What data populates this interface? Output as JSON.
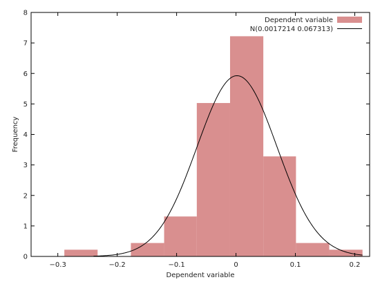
{
  "chart_data": {
    "type": "histogram",
    "title": "",
    "xlabel": "Dependent variable",
    "ylabel": "Frequency",
    "xlim": [
      -0.345,
      0.225
    ],
    "ylim": [
      0,
      8
    ],
    "xticks": [
      -0.3,
      -0.2,
      -0.1,
      0,
      0.1,
      0.2
    ],
    "xtick_labels": [
      "−0.3",
      "−0.2",
      "−0.1",
      "0",
      "0.1",
      "0.2"
    ],
    "yticks": [
      0,
      1,
      2,
      3,
      4,
      5,
      6,
      7,
      8
    ],
    "ytick_labels": [
      "0",
      "1",
      "2",
      "3",
      "4",
      "5",
      "6",
      "7",
      "8"
    ],
    "bins": [
      {
        "x0": -0.289,
        "x1": -0.233,
        "value": 0.22
      },
      {
        "x0": -0.177,
        "x1": -0.121,
        "value": 0.44
      },
      {
        "x0": -0.121,
        "x1": -0.066,
        "value": 1.31
      },
      {
        "x0": -0.066,
        "x1": -0.01,
        "value": 5.03
      },
      {
        "x0": -0.01,
        "x1": 0.046,
        "value": 7.22
      },
      {
        "x0": 0.046,
        "x1": 0.101,
        "value": 3.28
      },
      {
        "x0": 0.101,
        "x1": 0.157,
        "value": 0.44
      },
      {
        "x0": 0.157,
        "x1": 0.213,
        "value": 0.22
      }
    ],
    "bar_color": "#d98f8f",
    "curve": {
      "mean": 0.0017214,
      "sd": 0.067313,
      "color": "#000000",
      "x_range": [
        -0.24,
        0.213
      ]
    },
    "legend": {
      "position": "top-right",
      "entries": [
        {
          "label": "Dependent variable",
          "kind": "bar"
        },
        {
          "label": "N(0.0017214 0.067313)",
          "kind": "line"
        }
      ]
    },
    "grid": false
  }
}
